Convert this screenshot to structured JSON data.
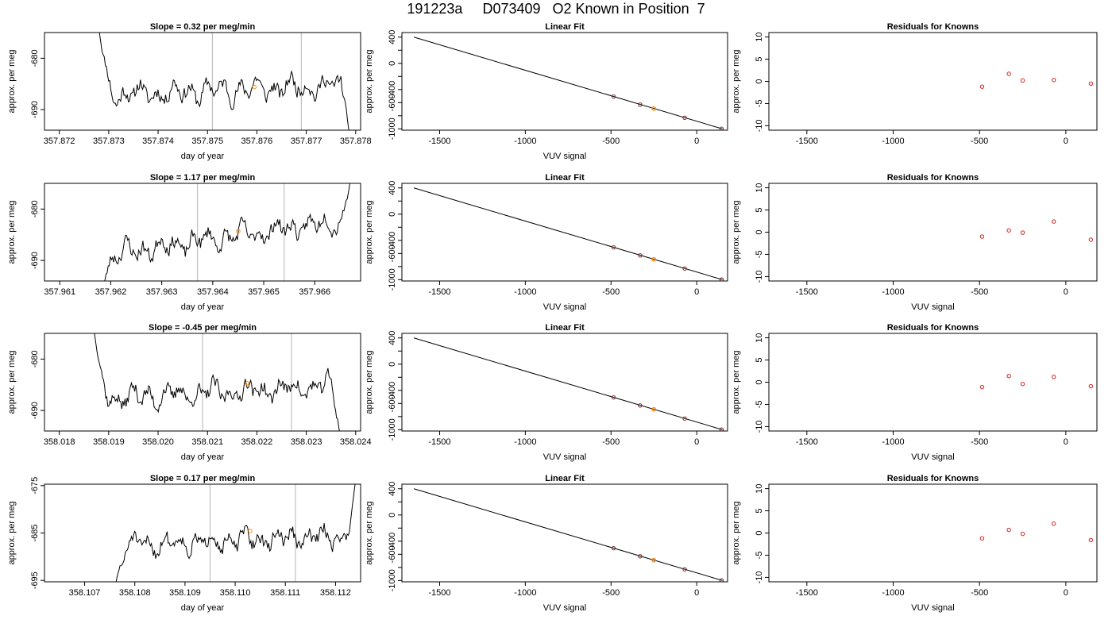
{
  "page_title": "191223a     D073409   O2 Known in Position  7",
  "colors": {
    "trace": "#000000",
    "point": "#ff8c00",
    "residual": "#d22020",
    "box": "#000000",
    "vline": "#c0c0c0",
    "fit": "#000000"
  },
  "chart_data": [
    {
      "row": 1,
      "type": "line",
      "title": "Slope =  0.32  per meg/min",
      "xlabel": "day of year",
      "ylabel": "approx. per meg",
      "xlim": [
        357.8717,
        357.8781
      ],
      "ylim": [
        -694.0,
        -675.0
      ],
      "xticks": [
        "357.872",
        "357.873",
        "357.874",
        "357.875",
        "357.876",
        "357.877",
        "357.878"
      ],
      "yticks": [
        "-690",
        "-680"
      ],
      "vlines": [
        357.8751,
        357.8769
      ],
      "trace": {
        "x0": 357.8728,
        "x1": 357.8779,
        "start": -674,
        "end": -696,
        "baseline": -686.2,
        "drift": 2.0,
        "amp": 2.2,
        "seed": 11
      },
      "highlight": {
        "x": 357.87595,
        "y": -685.6
      }
    },
    {
      "row": 1,
      "type": "scatter",
      "title": "Linear Fit",
      "xlabel": "VUV signal",
      "ylabel": "approx. per meg",
      "xlim": [
        -1720,
        180
      ],
      "ylim": [
        -1020,
        470
      ],
      "xticks": [
        "-1500",
        "-1000",
        "-500",
        "0"
      ],
      "yticks": [
        "-1000",
        "-800",
        "-600",
        "-400",
        "-200",
        "0",
        "200",
        "400"
      ],
      "ytick_labels": [
        "-1000",
        "",
        "-600",
        "-400",
        "",
        "0",
        "",
        "400"
      ],
      "line": {
        "x": [
          -1650,
          150
        ],
        "y": [
          400,
          -1000
        ]
      },
      "points": [
        {
          "x": -485,
          "y": -507
        },
        {
          "x": -330,
          "y": -630
        },
        {
          "x": -250,
          "y": -690
        },
        {
          "x": -70,
          "y": -830
        },
        {
          "x": 145,
          "y": -998
        }
      ],
      "highlight": {
        "x": -250,
        "y": -690
      }
    },
    {
      "row": 1,
      "type": "scatter",
      "title": "Residuals for Knowns",
      "xlabel": "",
      "ylabel": "approx. per meg",
      "xlim": [
        -1720,
        180
      ],
      "ylim": [
        -11,
        11
      ],
      "xticks": [
        "-1500",
        "-1000",
        "-500",
        "0"
      ],
      "yticks": [
        "-10",
        "-5",
        "0",
        "5",
        "10"
      ],
      "points": [
        {
          "x": -485,
          "y": -1.2
        },
        {
          "x": -330,
          "y": 1.7
        },
        {
          "x": -250,
          "y": 0.2
        },
        {
          "x": -70,
          "y": 0.3
        },
        {
          "x": 145,
          "y": -0.5
        }
      ]
    },
    {
      "row": 2,
      "type": "line",
      "title": "Slope =  1.17  per meg/min",
      "xlabel": "day of year",
      "ylabel": "approx. per meg",
      "xlim": [
        357.9607,
        357.9669
      ],
      "ylim": [
        -694.0,
        -675.0
      ],
      "xticks": [
        "357.961",
        "357.962",
        "357.963",
        "357.964",
        "357.965",
        "357.966"
      ],
      "yticks": [
        "-690",
        "-680"
      ],
      "vlines": [
        357.9637,
        357.9654
      ],
      "trace": {
        "x0": 357.9618,
        "x1": 357.9667,
        "start": -697,
        "end": -674,
        "baseline": -685.5,
        "drift": 7.0,
        "amp": 2.1,
        "seed": 23
      },
      "highlight": {
        "x": 357.9645,
        "y": -684.3
      }
    },
    {
      "row": 2,
      "type": "scatter",
      "title": "Linear Fit",
      "xlabel": "VUV signal",
      "ylabel": "approx. per meg",
      "xlim": [
        -1720,
        180
      ],
      "ylim": [
        -1020,
        470
      ],
      "xticks": [
        "-1500",
        "-1000",
        "-500",
        "0"
      ],
      "yticks": [
        "-1000",
        "-800",
        "-600",
        "-400",
        "-200",
        "0",
        "200",
        "400"
      ],
      "ytick_labels": [
        "-1000",
        "",
        "-600",
        "-400",
        "",
        "0",
        "",
        "400"
      ],
      "line": {
        "x": [
          -1650,
          150
        ],
        "y": [
          400,
          -1000
        ]
      },
      "points": [
        {
          "x": -485,
          "y": -507
        },
        {
          "x": -330,
          "y": -630
        },
        {
          "x": -250,
          "y": -690
        },
        {
          "x": -70,
          "y": -830
        },
        {
          "x": 145,
          "y": -998
        }
      ],
      "highlight": {
        "x": -250,
        "y": -690
      }
    },
    {
      "row": 2,
      "type": "scatter",
      "title": "Residuals for Knowns",
      "xlabel": "VUV signal",
      "ylabel": "approx. per meg",
      "xlim": [
        -1720,
        180
      ],
      "ylim": [
        -11,
        11
      ],
      "xticks": [
        "-1500",
        "-1000",
        "-500",
        "0"
      ],
      "yticks": [
        "-10",
        "-5",
        "0",
        "5",
        "10"
      ],
      "points": [
        {
          "x": -485,
          "y": -1.0
        },
        {
          "x": -330,
          "y": 0.4
        },
        {
          "x": -250,
          "y": -0.1
        },
        {
          "x": -70,
          "y": 2.4
        },
        {
          "x": 145,
          "y": -1.7
        }
      ]
    },
    {
      "row": 3,
      "type": "line",
      "title": "Slope =  -0.45  per meg/min",
      "xlabel": "day of year",
      "ylabel": "approx. per meg",
      "xlim": [
        358.0177,
        358.0241
      ],
      "ylim": [
        -694.0,
        -675.0
      ],
      "xticks": [
        "358.018",
        "358.019",
        "358.020",
        "358.021",
        "358.022",
        "358.023",
        "358.024"
      ],
      "yticks": [
        "-690",
        "-680"
      ],
      "vlines": [
        358.0209,
        358.0227
      ],
      "trace": {
        "x0": 358.0187,
        "x1": 358.0237,
        "start": -674,
        "end": -696,
        "baseline": -686.5,
        "drift": 2.5,
        "amp": 2.2,
        "seed": 37
      },
      "highlight": {
        "x": 358.0218,
        "y": -684.7
      }
    },
    {
      "row": 3,
      "type": "scatter",
      "title": "Linear Fit",
      "xlabel": "VUV signal",
      "ylabel": "approx. per meg",
      "xlim": [
        -1720,
        180
      ],
      "ylim": [
        -1020,
        470
      ],
      "xticks": [
        "-1500",
        "-1000",
        "-500",
        "0"
      ],
      "yticks": [
        "-1000",
        "-800",
        "-600",
        "-400",
        "-200",
        "0",
        "200",
        "400"
      ],
      "ytick_labels": [
        "-1000",
        "",
        "-600",
        "-400",
        "",
        "0",
        "",
        "400"
      ],
      "line": {
        "x": [
          -1650,
          150
        ],
        "y": [
          400,
          -1000
        ]
      },
      "points": [
        {
          "x": -485,
          "y": -507
        },
        {
          "x": -330,
          "y": -630
        },
        {
          "x": -250,
          "y": -690
        },
        {
          "x": -70,
          "y": -830
        },
        {
          "x": 145,
          "y": -998
        }
      ],
      "highlight": {
        "x": -250,
        "y": -690
      }
    },
    {
      "row": 3,
      "type": "scatter",
      "title": "Residuals for Knowns",
      "xlabel": "VUV signal",
      "ylabel": "approx. per meg",
      "xlim": [
        -1720,
        180
      ],
      "ylim": [
        -11,
        11
      ],
      "xticks": [
        "-1500",
        "-1000",
        "-500",
        "0"
      ],
      "yticks": [
        "-10",
        "-5",
        "0",
        "5",
        "10"
      ],
      "points": [
        {
          "x": -485,
          "y": -1.1
        },
        {
          "x": -330,
          "y": 1.4
        },
        {
          "x": -250,
          "y": -0.4
        },
        {
          "x": -70,
          "y": 1.2
        },
        {
          "x": 145,
          "y": -0.9
        }
      ]
    },
    {
      "row": 4,
      "type": "line",
      "title": "Slope =  0.17  per meg/min",
      "xlabel": "day of year",
      "ylabel": "approx. per meg",
      "xlim": [
        358.1062,
        358.1125
      ],
      "ylim": [
        -695.3,
        -674.7
      ],
      "xticks": [
        "358.107",
        "358.108",
        "358.109",
        "358.110",
        "358.111",
        "358.112"
      ],
      "yticks": [
        "-695",
        "-685",
        "-675"
      ],
      "vlines": [
        358.1095,
        358.1112
      ],
      "trace": {
        "x0": 358.1076,
        "x1": 358.1124,
        "start": -697,
        "end": -674,
        "baseline": -686.6,
        "drift": 2.0,
        "amp": 2.2,
        "seed": 51
      },
      "highlight": {
        "x": 358.1103,
        "y": -684.6
      }
    },
    {
      "row": 4,
      "type": "scatter",
      "title": "Linear Fit",
      "xlabel": "VUV signal",
      "ylabel": "approx. per meg",
      "xlim": [
        -1720,
        180
      ],
      "ylim": [
        -1020,
        470
      ],
      "xticks": [
        "-1500",
        "-1000",
        "-500",
        "0"
      ],
      "yticks": [
        "-1000",
        "-800",
        "-600",
        "-400",
        "-200",
        "0",
        "200",
        "400"
      ],
      "ytick_labels": [
        "-1000",
        "",
        "-600",
        "-400",
        "",
        "0",
        "",
        "400"
      ],
      "line": {
        "x": [
          -1650,
          150
        ],
        "y": [
          400,
          -1000
        ]
      },
      "points": [
        {
          "x": -485,
          "y": -507
        },
        {
          "x": -330,
          "y": -630
        },
        {
          "x": -250,
          "y": -690
        },
        {
          "x": -70,
          "y": -830
        },
        {
          "x": 145,
          "y": -998
        }
      ],
      "highlight": {
        "x": -250,
        "y": -690
      }
    },
    {
      "row": 4,
      "type": "scatter",
      "title": "Residuals for Knowns",
      "xlabel": "VUV signal",
      "ylabel": "approx. per meg",
      "xlim": [
        -1720,
        180
      ],
      "ylim": [
        -11,
        11
      ],
      "xticks": [
        "-1500",
        "-1000",
        "-500",
        "0"
      ],
      "yticks": [
        "-10",
        "-5",
        "0",
        "5",
        "10"
      ],
      "points": [
        {
          "x": -485,
          "y": -1.2
        },
        {
          "x": -330,
          "y": 0.7
        },
        {
          "x": -250,
          "y": -0.2
        },
        {
          "x": -70,
          "y": 2.1
        },
        {
          "x": 145,
          "y": -1.6
        }
      ]
    }
  ]
}
